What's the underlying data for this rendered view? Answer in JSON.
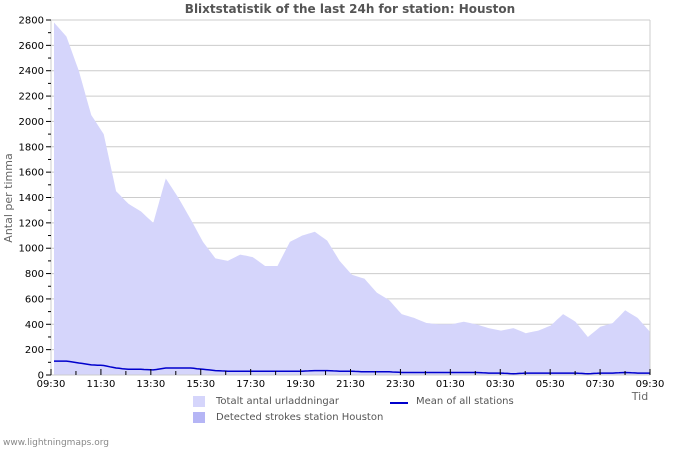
{
  "title": "Blixtstatistik of the last 24h for station: Houston",
  "footer": "www.lightningmaps.org",
  "colors": {
    "total_fill": "#d5d5fb",
    "detected_fill": "#b5b5f5",
    "mean_line": "#0000cc",
    "grid": "#cccccc",
    "axis": "#cccccc"
  },
  "legend": {
    "items": [
      {
        "label": "Totalt antal urladdningar",
        "type": "area",
        "color": "#d5d5fb"
      },
      {
        "label": "Detected strokes station Houston",
        "type": "area",
        "color": "#b5b5f5"
      },
      {
        "label": "Mean of all stations",
        "type": "line",
        "color": "#0000cc"
      }
    ]
  },
  "chart_data": {
    "type": "area",
    "title": "Blixtstatistik of the last 24h for station: Houston",
    "xlabel": "Tid",
    "ylabel": "Antal per timma",
    "ylim": [
      0,
      2800
    ],
    "yticks": [
      0,
      200,
      400,
      600,
      800,
      1000,
      1200,
      1400,
      1600,
      1800,
      2000,
      2200,
      2400,
      2600,
      2800
    ],
    "xticks": [
      "09:30",
      "11:30",
      "13:30",
      "15:30",
      "17:30",
      "19:30",
      "21:30",
      "23:30",
      "01:30",
      "03:30",
      "05:30",
      "07:30",
      "09:30"
    ],
    "grid": true,
    "legend_position": "bottom",
    "x": [
      "09:30",
      "10:00",
      "10:30",
      "11:00",
      "11:30",
      "12:00",
      "12:30",
      "13:00",
      "13:30",
      "14:00",
      "14:30",
      "15:00",
      "15:30",
      "16:00",
      "16:30",
      "17:00",
      "17:30",
      "18:00",
      "18:30",
      "19:00",
      "19:30",
      "20:00",
      "20:30",
      "21:00",
      "21:30",
      "22:00",
      "22:30",
      "23:00",
      "23:30",
      "00:00",
      "00:30",
      "01:00",
      "01:30",
      "02:00",
      "02:30",
      "03:00",
      "03:30",
      "04:00",
      "04:30",
      "05:00",
      "05:30",
      "06:00",
      "06:30",
      "07:00",
      "07:30",
      "08:00",
      "08:30",
      "09:00",
      "09:30"
    ],
    "series": [
      {
        "name": "Totalt antal urladdningar",
        "values": [
          2780,
          2670,
          2400,
          2050,
          1900,
          1450,
          1350,
          1290,
          1200,
          1550,
          1400,
          1230,
          1050,
          920,
          900,
          950,
          930,
          860,
          860,
          1050,
          1100,
          1130,
          1060,
          900,
          790,
          760,
          650,
          590,
          480,
          450,
          410,
          400,
          400,
          420,
          400,
          370,
          350,
          370,
          330,
          350,
          390,
          480,
          420,
          300,
          380,
          410,
          510,
          450,
          340
        ]
      },
      {
        "name": "Detected strokes station Houston",
        "values": [
          0,
          0,
          0,
          0,
          0,
          0,
          0,
          0,
          0,
          0,
          0,
          0,
          0,
          0,
          0,
          0,
          0,
          0,
          0,
          0,
          0,
          0,
          0,
          0,
          0,
          0,
          0,
          0,
          0,
          0,
          0,
          0,
          0,
          0,
          0,
          0,
          0,
          0,
          0,
          0,
          0,
          0,
          0,
          0,
          0,
          0,
          0,
          0,
          0
        ]
      },
      {
        "name": "Mean of all stations",
        "values": [
          110,
          110,
          95,
          80,
          75,
          55,
          45,
          45,
          40,
          55,
          55,
          55,
          45,
          35,
          30,
          30,
          30,
          30,
          30,
          30,
          30,
          35,
          35,
          30,
          30,
          25,
          25,
          25,
          20,
          20,
          20,
          20,
          20,
          20,
          20,
          15,
          15,
          10,
          15,
          15,
          15,
          15,
          15,
          10,
          15,
          15,
          20,
          15,
          15
        ]
      }
    ]
  }
}
